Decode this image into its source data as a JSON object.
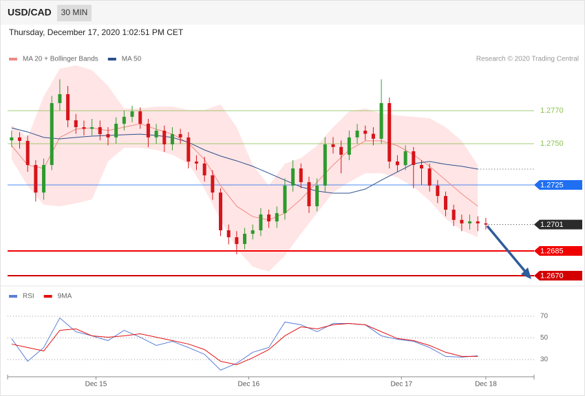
{
  "header": {
    "symbol": "USD/CAD",
    "timeframe": "30 MIN",
    "datetime": "Thursday, December 17, 2020 1:02:51 PM CET"
  },
  "chart_data": [
    {
      "type": "candlestick",
      "credit": "Research © 2020 Trading Central",
      "up_color": "#2e9a2e",
      "down_color": "#d6141b",
      "band_color": "#ffe0e0",
      "xlim": [
        -0.5,
        65
      ],
      "ylim": [
        1.2664,
        1.28
      ],
      "xticks": [
        {
          "value": 10.5,
          "label": "Dec 15"
        },
        {
          "value": 29.5,
          "label": "Dec 16"
        },
        {
          "value": 48.5,
          "label": "Dec 17"
        },
        {
          "value": 59,
          "label": "Dec 18"
        }
      ],
      "open": [
        1.2752,
        1.27538,
        1.27517,
        1.27371,
        1.27204,
        1.27371,
        1.27746,
        1.278,
        1.27642,
        1.276,
        1.2759,
        1.276,
        1.27558,
        1.27538,
        1.27621,
        1.27663,
        1.27696,
        1.27621,
        1.27538,
        1.27579,
        1.27496,
        1.27558,
        1.27538,
        1.27392,
        1.2738,
        1.27308,
        1.27204,
        1.26975,
        1.26933,
        1.26892,
        1.26954,
        1.26975,
        1.27071,
        1.27029,
        1.27079,
        1.27246,
        1.2735,
        1.27267,
        1.27121,
        1.27246,
        1.27496,
        1.2748,
        1.27433,
        1.27538,
        1.27579,
        1.2756,
        1.2753,
        1.27746,
        1.27392,
        1.2737,
        1.27454,
        1.27371,
        1.2735,
        1.27246,
        1.27183,
        1.271,
        1.27038,
        1.27017,
        1.27029,
        1.27017
      ],
      "high": [
        1.2758,
        1.2757,
        1.2755,
        1.274,
        1.2741,
        1.2779,
        1.2789,
        1.2785,
        1.2768,
        1.2764,
        1.2765,
        1.2764,
        1.276,
        1.2766,
        1.277,
        1.2773,
        1.2772,
        1.2765,
        1.2762,
        1.2761,
        1.276,
        1.2759,
        1.2757,
        1.2743,
        1.2742,
        1.2734,
        1.2723,
        1.2701,
        1.2697,
        1.2699,
        1.2701,
        1.2711,
        1.271,
        1.2712,
        1.2729,
        1.274,
        1.2738,
        1.273,
        1.2729,
        1.2754,
        1.2754,
        1.2752,
        1.2758,
        1.2762,
        1.2761,
        1.276,
        1.2789,
        1.2778,
        1.2743,
        1.2749,
        1.2748,
        1.274,
        1.2738,
        1.2728,
        1.2721,
        1.2713,
        1.2707,
        1.2707,
        1.2706,
        1.2705
      ],
      "low": [
        1.2748,
        1.2747,
        1.2733,
        1.2715,
        1.2716,
        1.2734,
        1.277,
        1.276,
        1.2756,
        1.2755,
        1.2755,
        1.2752,
        1.2749,
        1.275,
        1.2758,
        1.2763,
        1.2759,
        1.2748,
        1.275,
        1.2745,
        1.2746,
        1.275,
        1.2735,
        1.2734,
        1.2727,
        1.2716,
        1.2694,
        1.2689,
        1.2683,
        1.2686,
        1.2692,
        1.2694,
        1.2699,
        1.2699,
        1.2704,
        1.2721,
        1.2723,
        1.2708,
        1.2709,
        1.2721,
        1.2744,
        1.2732,
        1.274,
        1.275,
        1.2752,
        1.2749,
        1.275,
        1.2735,
        1.2733,
        1.2734,
        1.2723,
        1.2725,
        1.2721,
        1.2714,
        1.2706,
        1.27,
        1.2697,
        1.2698,
        1.2697,
        1.2698
      ],
      "close": [
        1.27538,
        1.27517,
        1.27371,
        1.27204,
        1.27371,
        1.27746,
        1.278,
        1.27642,
        1.276,
        1.2759,
        1.276,
        1.27558,
        1.27538,
        1.27621,
        1.27663,
        1.27696,
        1.27621,
        1.27538,
        1.27579,
        1.27496,
        1.27558,
        1.27538,
        1.27392,
        1.2738,
        1.27308,
        1.27204,
        1.26975,
        1.26933,
        1.26892,
        1.26954,
        1.26975,
        1.27071,
        1.27029,
        1.27079,
        1.27246,
        1.2735,
        1.27267,
        1.27121,
        1.27246,
        1.27496,
        1.2748,
        1.27433,
        1.27538,
        1.27579,
        1.2756,
        1.2753,
        1.27746,
        1.27392,
        1.2737,
        1.27454,
        1.27371,
        1.2735,
        1.27246,
        1.27183,
        1.271,
        1.27038,
        1.27017,
        1.27029,
        1.27017,
        1.2701
      ],
      "series": [
        {
          "name": "MA 20 + Bollinger Bands",
          "color": "#f08a84",
          "x": [
            0,
            2,
            4,
            6,
            8,
            10,
            12,
            14,
            16,
            18,
            20,
            22,
            24,
            26,
            28,
            30,
            32,
            34,
            36,
            38,
            40,
            42,
            44,
            46,
            48,
            50,
            52,
            54,
            56,
            58
          ],
          "values": [
            1.27488,
            1.27371,
            1.2735,
            1.27538,
            1.27588,
            1.27596,
            1.27579,
            1.276,
            1.27621,
            1.27588,
            1.27558,
            1.27504,
            1.27404,
            1.27246,
            1.27121,
            1.27058,
            1.27038,
            1.27079,
            1.27163,
            1.27267,
            1.27371,
            1.27462,
            1.27517,
            1.27517,
            1.27488,
            1.27433,
            1.27363,
            1.27279,
            1.27196,
            1.27121
          ],
          "upper": [
            1.27613,
            1.27538,
            1.27788,
            1.27954,
            1.27975,
            1.27946,
            1.2785,
            1.27713,
            1.27713,
            1.27725,
            1.27725,
            1.27704,
            1.27704,
            1.27738,
            1.276,
            1.27371,
            1.27246,
            1.27379,
            1.27413,
            1.27488,
            1.276,
            1.27696,
            1.27713,
            1.27683,
            1.27671,
            1.27663,
            1.27654,
            1.276,
            1.27517,
            1.27371
          ],
          "lower": [
            1.27404,
            1.27246,
            1.27129,
            1.27121,
            1.27138,
            1.27163,
            1.27392,
            1.27475,
            1.27475,
            1.27462,
            1.27433,
            1.27379,
            1.27225,
            1.27038,
            1.26863,
            1.26754,
            1.26725,
            1.26821,
            1.26954,
            1.27079,
            1.27204,
            1.27267,
            1.27321,
            1.27321,
            1.27296,
            1.27238,
            1.27154,
            1.27046,
            1.26975,
            1.26933
          ]
        },
        {
          "name": "MA 50",
          "color": "#2c4f8c",
          "x": [
            0,
            2,
            4,
            6,
            8,
            10,
            12,
            14,
            16,
            18,
            20,
            22,
            24,
            26,
            28,
            30,
            32,
            34,
            36,
            38,
            40,
            42,
            44,
            46,
            48,
            50,
            52,
            54,
            56,
            58
          ],
          "values": [
            1.27596,
            1.27571,
            1.27538,
            1.27529,
            1.27538,
            1.27546,
            1.2755,
            1.27554,
            1.27558,
            1.2755,
            1.27538,
            1.27508,
            1.27462,
            1.27425,
            1.27396,
            1.27363,
            1.27321,
            1.27279,
            1.27238,
            1.27213,
            1.272,
            1.272,
            1.27225,
            1.27279,
            1.27329,
            1.27379,
            1.27392,
            1.27375,
            1.27363,
            1.27346
          ]
        }
      ],
      "levels": [
        {
          "value": 1.277,
          "label": "1.2770",
          "color": "#8cc152",
          "line": "thin",
          "tag": false
        },
        {
          "value": 1.275,
          "label": "1.2750",
          "color": "#8cc152",
          "line": "thin",
          "tag": false
        },
        {
          "value": 1.2725,
          "label": "1.2725",
          "color": "#1f6ff2",
          "line": "thin",
          "tag": true
        },
        {
          "value": 1.2701,
          "label": "1.2701",
          "color": "#2b2b2b",
          "line": "dotted",
          "tag": true
        },
        {
          "value": 1.2685,
          "label": "1.2685",
          "color": "#f00000",
          "line": "thick",
          "tag": true
        },
        {
          "value": 1.267,
          "label": "1.2670",
          "color": "#d40000",
          "line": "thick",
          "tag": true
        }
      ]
    },
    {
      "type": "line",
      "xlim": [
        -0.5,
        65
      ],
      "ylim": [
        16,
        83
      ],
      "yticks": [
        30,
        50,
        70
      ],
      "grid": true,
      "series": [
        {
          "name": "RSI",
          "color": "#5b7fd6",
          "x": [
            0,
            2,
            4,
            6,
            8,
            10,
            12,
            14,
            16,
            18,
            20,
            22,
            24,
            26,
            28,
            30,
            32,
            34,
            36,
            38,
            40,
            42,
            44,
            46,
            48,
            50,
            52,
            54,
            56,
            58
          ],
          "values": [
            49.4,
            28.4,
            41.1,
            68.4,
            55.7,
            51.9,
            47.5,
            57,
            50.6,
            43,
            46.8,
            41.1,
            34.8,
            20.2,
            26.5,
            36.7,
            41.1,
            64.6,
            62.1,
            55.7,
            63.3,
            63.3,
            62.1,
            51.9,
            48.7,
            46.8,
            41.1,
            32.9,
            32.2,
            33.5
          ]
        },
        {
          "name": "9MA",
          "color": "#e31010",
          "x": [
            0,
            2,
            4,
            6,
            8,
            10,
            12,
            14,
            16,
            18,
            20,
            22,
            24,
            26,
            28,
            30,
            32,
            34,
            36,
            38,
            40,
            42,
            44,
            46,
            48,
            50,
            52,
            54,
            56,
            58
          ],
          "values": [
            44.3,
            41.1,
            37.9,
            57,
            58.3,
            51.9,
            50.6,
            51.9,
            53.8,
            50.6,
            47.5,
            44.3,
            39.2,
            28.4,
            25.2,
            31.6,
            39.2,
            51.9,
            60.2,
            58.3,
            62.1,
            63.3,
            62.1,
            55.7,
            49.4,
            47.5,
            43,
            36.7,
            32.9,
            32.9
          ]
        }
      ]
    }
  ]
}
